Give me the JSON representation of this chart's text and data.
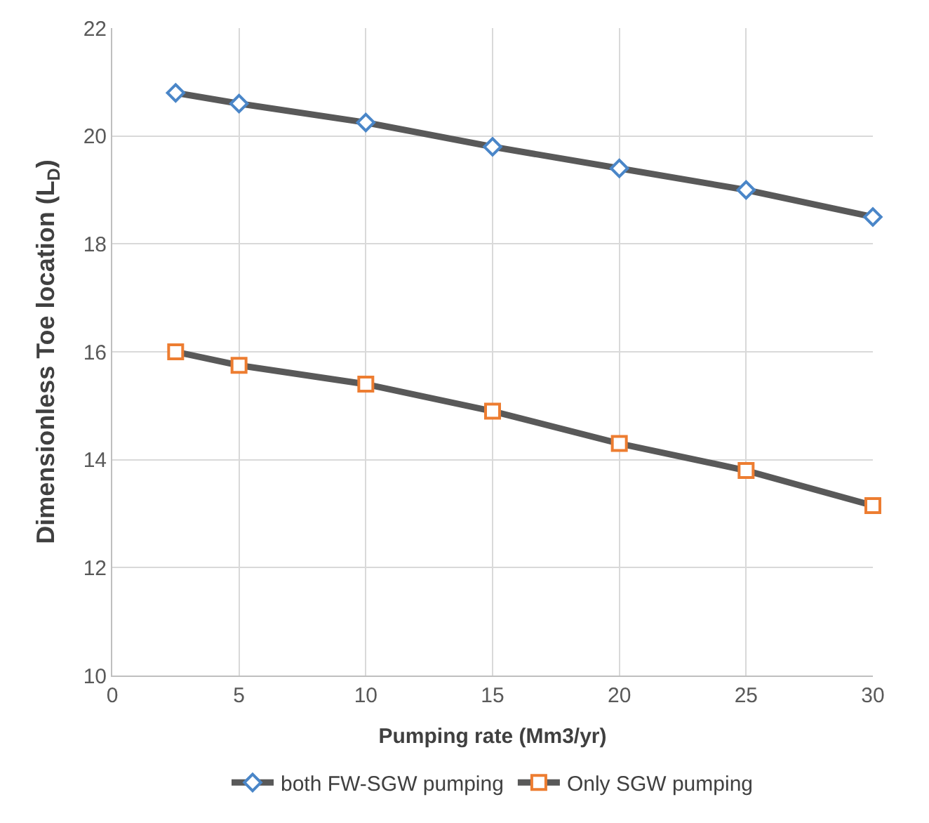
{
  "chart_data": {
    "type": "line",
    "xlabel": "Pumping rate (Mm3/yr)",
    "ylabel": "Dimensionless Toe location (L$_{D}$)",
    "x": [
      2.5,
      5,
      10,
      15,
      20,
      25,
      30
    ],
    "series": [
      {
        "name": "both FW-SGW pumping",
        "color": "#595959",
        "colors": [
          "#4a86c8",
          "#4a86c8",
          "#4a86c8",
          "#4a86c8",
          "#4a86c8",
          "#4a86c8",
          "#4a86c8"
        ],
        "marker": "diamond",
        "values": [
          20.8,
          20.6,
          20.25,
          19.8,
          19.4,
          19.0,
          18.5
        ]
      },
      {
        "name": "Only SGW pumping",
        "color": "#595959",
        "colors": [
          "#ed7d31",
          "#ed7d31",
          "#ed7d31",
          "#ed7d31",
          "#ed7d31",
          "#ed7d31",
          "#ed7d31"
        ],
        "marker": "square",
        "values": [
          16.0,
          15.75,
          15.4,
          14.9,
          14.3,
          13.8,
          13.15
        ]
      }
    ],
    "xlim": [
      0,
      30
    ],
    "xticks": [
      0,
      5,
      10,
      15,
      20,
      25,
      30
    ],
    "ylim": [
      10,
      22
    ],
    "yticks": [
      10,
      12,
      14,
      16,
      18,
      20,
      22
    ],
    "grid": true,
    "legend": "bottom",
    "line_style": "solid"
  }
}
